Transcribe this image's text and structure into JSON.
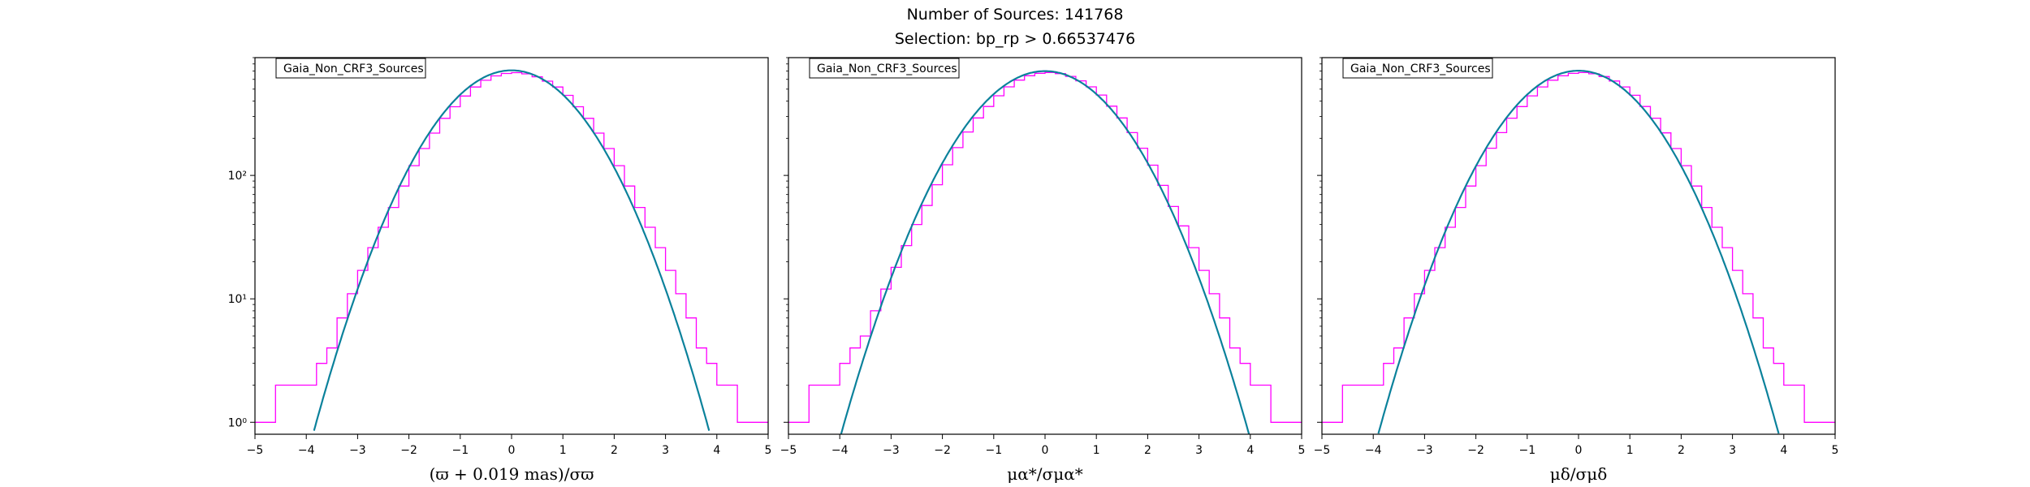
{
  "figure": {
    "title_line1": "Number of Sources: 141768",
    "title_line2": "Selection: bp_rp > 0.66537476"
  },
  "colors": {
    "histogram": "#ff00ff",
    "fit_line": "#1f77b4",
    "fit_line_overlay": "#008b8b"
  },
  "chart_data": [
    {
      "type": "line",
      "legend": "Gaia_Non_CRF3_Sources",
      "xlabel": "(ϖ + 0.019 mas)/σϖ",
      "y_scale": "log",
      "xlim": [
        -5,
        5
      ],
      "ylim": [
        0.8,
        900
      ],
      "xticks": [
        "−5",
        "−4",
        "−3",
        "−2",
        "−1",
        "0",
        "1",
        "2",
        "3",
        "4",
        "5"
      ],
      "yticks": [
        {
          "value": 1,
          "label": "10⁰"
        },
        {
          "value": 10,
          "label": "10¹"
        },
        {
          "value": 100,
          "label": "10²"
        }
      ],
      "histogram": {
        "x": [
          -5.0,
          -4.6,
          -4.2,
          -4.0,
          -3.8,
          -3.6,
          -3.4,
          -3.2,
          -3.0,
          -2.8,
          -2.6,
          -2.4,
          -2.2,
          -2.0,
          -1.8,
          -1.6,
          -1.4,
          -1.2,
          -1.0,
          -0.8,
          -0.6,
          -0.4,
          -0.2,
          0.0,
          0.2,
          0.4,
          0.6,
          0.8,
          1.0,
          1.2,
          1.4,
          1.6,
          1.8,
          2.0,
          2.2,
          2.4,
          2.6,
          2.8,
          3.0,
          3.2,
          3.4,
          3.6,
          3.8,
          4.0,
          4.4,
          4.8,
          5.0
        ],
        "y": [
          1,
          2,
          2,
          2,
          3,
          4,
          7,
          11,
          17,
          26,
          38,
          55,
          82,
          120,
          165,
          220,
          290,
          360,
          440,
          520,
          590,
          640,
          670,
          680,
          665,
          630,
          580,
          520,
          445,
          360,
          290,
          220,
          165,
          120,
          82,
          55,
          38,
          26,
          17,
          11,
          7,
          4,
          3,
          2,
          1,
          1,
          1
        ]
      },
      "fit_curve": {
        "amplitude": 710,
        "mean": 0,
        "sigma": 1.05
      }
    },
    {
      "type": "line",
      "legend": "Gaia_Non_CRF3_Sources",
      "xlabel": "μα*/σμα*",
      "y_scale": "log",
      "xlim": [
        -5,
        5
      ],
      "ylim": [
        0.8,
        900
      ],
      "xticks": [
        "−5",
        "−4",
        "−3",
        "−2",
        "−1",
        "0",
        "1",
        "2",
        "3",
        "4",
        "5"
      ],
      "yticks": [
        {
          "value": 1,
          "label": ""
        },
        {
          "value": 10,
          "label": ""
        },
        {
          "value": 100,
          "label": ""
        }
      ],
      "histogram": {
        "x": [
          -5.0,
          -4.6,
          -4.2,
          -4.0,
          -3.8,
          -3.6,
          -3.4,
          -3.2,
          -3.0,
          -2.8,
          -2.6,
          -2.4,
          -2.2,
          -2.0,
          -1.8,
          -1.6,
          -1.4,
          -1.2,
          -1.0,
          -0.8,
          -0.6,
          -0.4,
          -0.2,
          0.0,
          0.2,
          0.4,
          0.6,
          0.8,
          1.0,
          1.2,
          1.4,
          1.6,
          1.8,
          2.0,
          2.2,
          2.4,
          2.6,
          2.8,
          3.0,
          3.2,
          3.4,
          3.6,
          3.8,
          4.0,
          4.4,
          4.8,
          5.0
        ],
        "y": [
          1,
          2,
          2,
          3,
          4,
          5,
          8,
          12,
          18,
          27,
          40,
          57,
          84,
          122,
          168,
          225,
          292,
          362,
          442,
          522,
          592,
          642,
          672,
          682,
          668,
          634,
          584,
          522,
          448,
          364,
          292,
          222,
          166,
          121,
          83,
          56,
          39,
          26,
          17,
          11,
          7,
          4,
          3,
          2,
          1,
          1,
          1
        ]
      },
      "fit_curve": {
        "amplitude": 700,
        "mean": 0,
        "sigma": 1.08
      }
    },
    {
      "type": "line",
      "legend": "Gaia_Non_CRF3_Sources",
      "xlabel": "μδ/σμδ",
      "y_scale": "log",
      "xlim": [
        -5,
        5
      ],
      "ylim": [
        0.8,
        900
      ],
      "xticks": [
        "−5",
        "−4",
        "−3",
        "−2",
        "−1",
        "0",
        "1",
        "2",
        "3",
        "4",
        "5"
      ],
      "yticks": [
        {
          "value": 1,
          "label": ""
        },
        {
          "value": 10,
          "label": ""
        },
        {
          "value": 100,
          "label": ""
        }
      ],
      "histogram": {
        "x": [
          -5.0,
          -4.6,
          -4.2,
          -4.0,
          -3.8,
          -3.6,
          -3.4,
          -3.2,
          -3.0,
          -2.8,
          -2.6,
          -2.4,
          -2.2,
          -2.0,
          -1.8,
          -1.6,
          -1.4,
          -1.2,
          -1.0,
          -0.8,
          -0.6,
          -0.4,
          -0.2,
          0.0,
          0.2,
          0.4,
          0.6,
          0.8,
          1.0,
          1.2,
          1.4,
          1.6,
          1.8,
          2.0,
          2.2,
          2.4,
          2.6,
          2.8,
          3.0,
          3.2,
          3.4,
          3.6,
          3.8,
          4.0,
          4.4,
          4.8,
          5.0
        ],
        "y": [
          1,
          2,
          2,
          2,
          3,
          4,
          7,
          11,
          17,
          26,
          38,
          55,
          82,
          120,
          166,
          222,
          291,
          361,
          441,
          521,
          591,
          641,
          671,
          681,
          666,
          632,
          582,
          521,
          446,
          362,
          291,
          221,
          165,
          120,
          82,
          55,
          38,
          26,
          17,
          11,
          7,
          4,
          3,
          2,
          1,
          1,
          1
        ]
      },
      "fit_curve": {
        "amplitude": 705,
        "mean": 0,
        "sigma": 1.06
      }
    }
  ]
}
